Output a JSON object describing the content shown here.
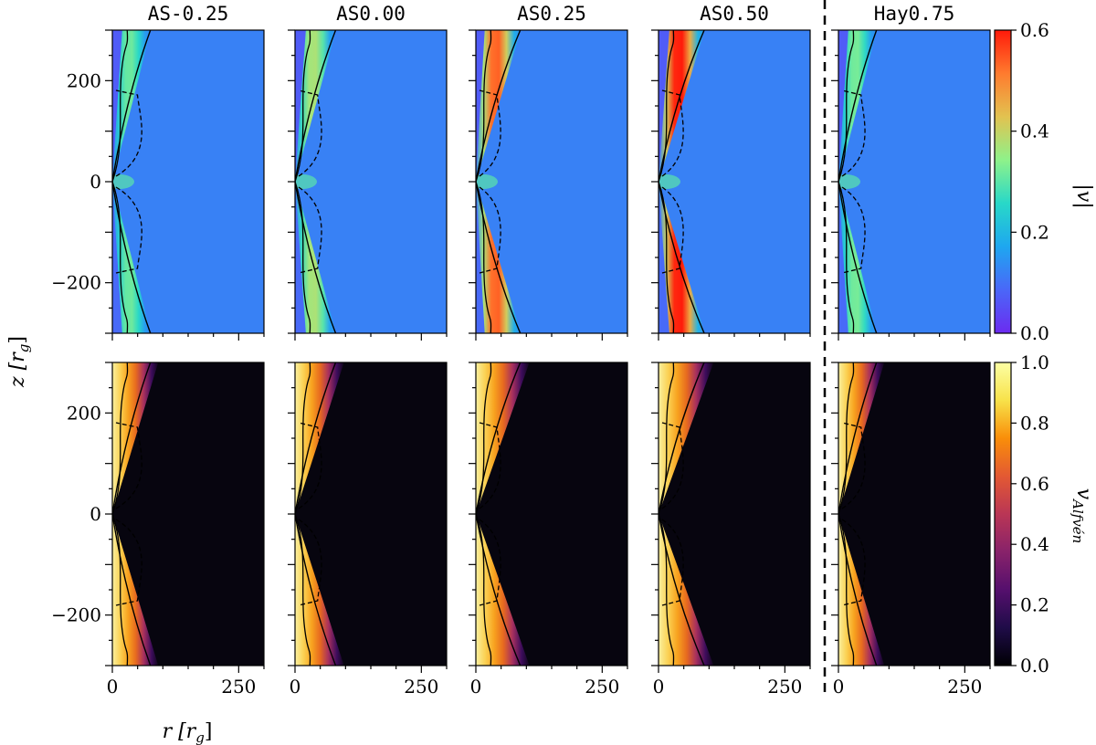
{
  "chart_data": {
    "type": "heatmap",
    "panels": [
      "AS-0.25",
      "AS0.00",
      "AS0.25",
      "AS0.50",
      "Hay0.75"
    ],
    "rows": [
      {
        "quantity": "|v|",
        "colormap": "rainbow",
        "cbar_range": [
          0.0,
          0.6
        ],
        "cbar_ticks": [
          "0.0",
          "0.2",
          "0.4",
          "0.6"
        ]
      },
      {
        "quantity": "v_Alfvén",
        "colormap": "inferno",
        "cbar_range": [
          0.0,
          1.0
        ],
        "cbar_ticks": [
          "0.0",
          "0.2",
          "0.4",
          "0.6",
          "0.8",
          "1.0"
        ]
      }
    ],
    "jet_peak_speed": [
      0.32,
      0.38,
      0.55,
      0.62,
      0.33
    ],
    "xlim": [
      0,
      300
    ],
    "ylim": [
      -300,
      300
    ],
    "xticks": [
      "0",
      "250"
    ],
    "yticks": [
      "200",
      "0",
      "−200"
    ],
    "xlabel": "r [r",
    "xlabel_sub": "g",
    "ylabel": "z [r",
    "ylabel_sub": "g",
    "cbar1_label": "|v|",
    "cbar2_label": "v",
    "cbar2_label_sub": "Alfvén",
    "separator": "dashed vertical line between AS0.50 and Hay0.75",
    "colors": {
      "rainbow": [
        "#6c2bf0",
        "#4a67f8",
        "#1ea7f0",
        "#28d8c8",
        "#8ef28a",
        "#e2c250",
        "#ff7b2e",
        "#ff1a0a"
      ],
      "inferno": [
        "#000004",
        "#1f0c48",
        "#550f6d",
        "#88226a",
        "#ba3655",
        "#e35933",
        "#f98e09",
        "#f8e24a",
        "#fcffa4"
      ]
    }
  }
}
